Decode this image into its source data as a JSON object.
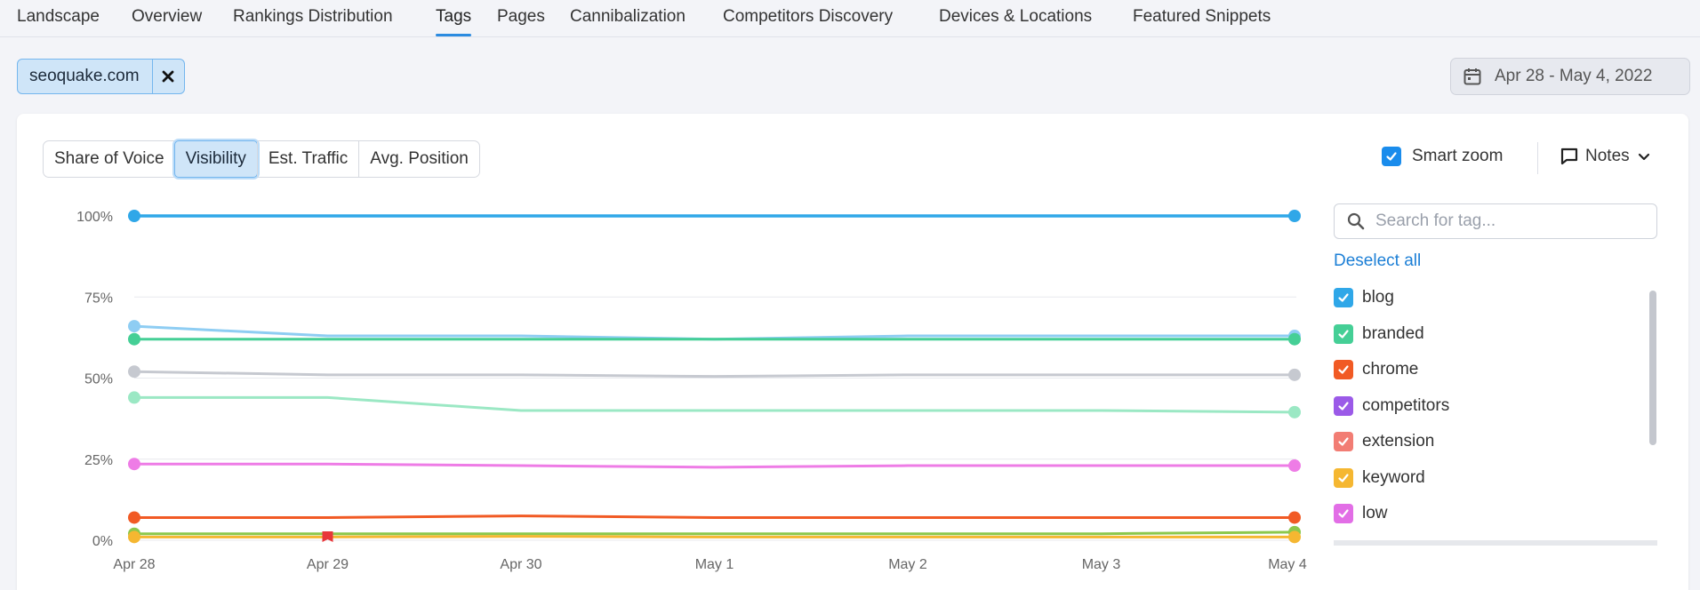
{
  "nav": {
    "tabs": [
      {
        "label": "Landscape"
      },
      {
        "label": "Overview"
      },
      {
        "label": "Rankings Distribution"
      },
      {
        "label": "Tags"
      },
      {
        "label": "Pages"
      },
      {
        "label": "Cannibalization"
      },
      {
        "label": "Competitors Discovery"
      },
      {
        "label": "Devices & Locations"
      },
      {
        "label": "Featured Snippets"
      }
    ],
    "active": "Tags"
  },
  "domain_filter": {
    "value": "seoquake.com",
    "remove_icon": "close-icon"
  },
  "date_range": {
    "label": "Apr 28 - May 4, 2022",
    "icon": "calendar-icon"
  },
  "metric_tabs": {
    "items": [
      "Share of Voice",
      "Visibility",
      "Est. Traffic",
      "Avg. Position"
    ],
    "selected": "Visibility"
  },
  "smart_zoom": {
    "label": "Smart zoom",
    "checked": true
  },
  "notes": {
    "label": "Notes",
    "icon": "comment-icon"
  },
  "tag_panel": {
    "search_placeholder": "Search for tag...",
    "deselect_label": "Deselect all",
    "tags": [
      {
        "name": "blog",
        "color": "#2fa7e8",
        "checked": true
      },
      {
        "name": "branded",
        "color": "#45cf96",
        "checked": true
      },
      {
        "name": "chrome",
        "color": "#f15a24",
        "checked": true
      },
      {
        "name": "competitors",
        "color": "#9b5ae8",
        "checked": true
      },
      {
        "name": "extension",
        "color": "#f27d74",
        "checked": true
      },
      {
        "name": "keyword",
        "color": "#f5b731",
        "checked": true
      },
      {
        "name": "low",
        "color": "#e26ee6",
        "checked": true
      },
      {
        "name": "",
        "color": "#8cc84b",
        "checked": true
      }
    ]
  },
  "chart_data": {
    "type": "line",
    "x": [
      "Apr 28",
      "Apr 29",
      "Apr 30",
      "May 1",
      "May 2",
      "May 3",
      "May 4"
    ],
    "yticks": [
      "100%",
      "75%",
      "50%",
      "25%",
      "0%"
    ],
    "ylim": [
      0,
      100
    ],
    "grid": true,
    "series": [
      {
        "color": "#2fa7e8",
        "values": [
          100,
          100,
          100,
          100,
          100,
          100,
          100
        ]
      },
      {
        "color": "#8ecdf3",
        "values": [
          66,
          63,
          63,
          62,
          63,
          63,
          63
        ]
      },
      {
        "color": "#45cf96",
        "values": [
          62,
          62,
          62,
          62,
          62,
          62,
          62
        ]
      },
      {
        "color": "#c6c9d0",
        "values": [
          52,
          51,
          51,
          50.5,
          51,
          51,
          51
        ]
      },
      {
        "color": "#9be8c4",
        "values": [
          44,
          44,
          40,
          40,
          40,
          40,
          39.5
        ]
      },
      {
        "color": "#ee7ce6",
        "values": [
          23.5,
          23.5,
          23,
          22.5,
          23,
          23,
          23
        ]
      },
      {
        "color": "#f15a24",
        "values": [
          7,
          7,
          7.5,
          7,
          7,
          7,
          7
        ]
      },
      {
        "color": "#8cc84b",
        "values": [
          2,
          2,
          2,
          2,
          2,
          2,
          2.5
        ]
      },
      {
        "color": "#f5b731",
        "values": [
          1,
          1,
          1.2,
          1,
          1,
          1,
          1
        ]
      }
    ],
    "annotation": {
      "type": "note-flag",
      "x": "Apr 29",
      "color": "#e8373a"
    }
  }
}
